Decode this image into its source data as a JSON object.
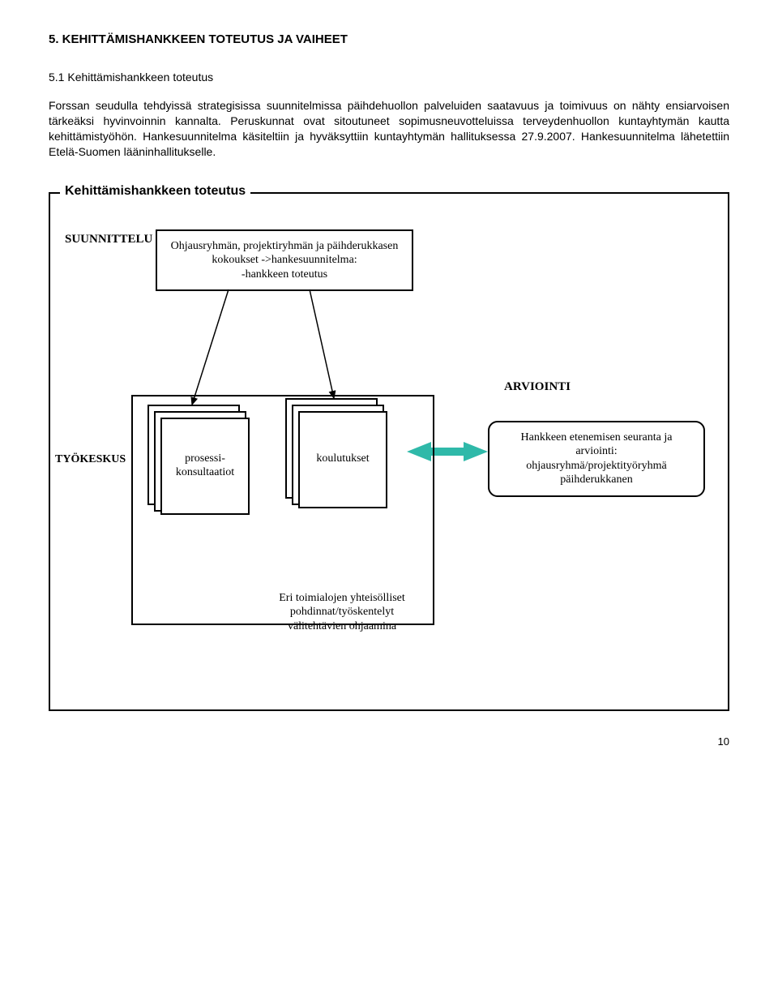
{
  "heading": "5. KEHITTÄMISHANKKEEN TOTEUTUS JA VAIHEET",
  "subheading": "5.1 Kehittämishankkeen toteutus",
  "paragraph": "Forssan seudulla tehdyissä strategisissa suunnitelmissa päihdehuollon palveluiden saatavuus ja toimivuus on nähty ensiarvoisen tärkeäksi hyvinvoinnin kannalta. Peruskunnat ovat sitoutuneet sopimusneuvotteluissa terveydenhuollon kuntayhtymän kautta kehittämistyöhön. Hankesuunnitelma käsiteltiin ja hyväksyttiin kuntayhtymän hallituksessa 27.9.2007. Hankesuunnitelma lähetettiin Etelä-Suomen lääninhallitukselle.",
  "diagram": {
    "title": "Kehittämishankkeen toteutus",
    "suunnittelu_label": "SUUNNITTELU",
    "planning_box": "Ohjausryhmän, projektiryhmän ja päihderukkasen kokoukset ->hankesuunnitelma:\n-hankkeen toteutus",
    "tyokeskus_label": "TYÖKESKUS",
    "stack1_label": "prosessi-\nkonsultaatiot",
    "stack2_label": "koulutukset",
    "arviointi_label": "ARVIOINTI",
    "arviointi_box": "Hankkeen etenemisen seuranta ja arviointi:\nohjausryhmä/projektityöryhmä\npäihderukkanen",
    "bottom_box": "Eri toimialojen yhteisölliset pohdinnat/työskentelyt\nvälitehtävien ohjaamina",
    "colors": {
      "border": "#000000",
      "arrow_teal": "#2fb9a9",
      "background": "#ffffff"
    }
  },
  "page_number": "10"
}
